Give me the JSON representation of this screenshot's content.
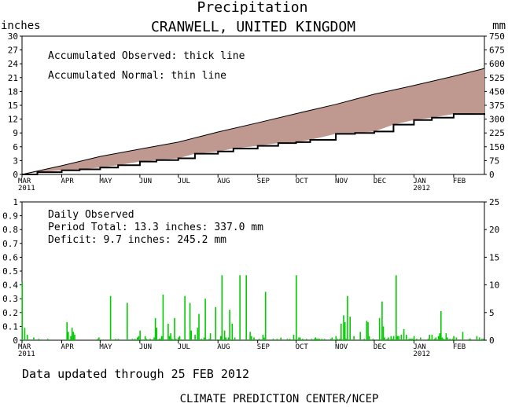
{
  "header": {
    "title": "Precipitation",
    "station": "CRANWELL, UNITED KINGDOM",
    "left_unit": "inches",
    "right_unit": "mm"
  },
  "footer": {
    "updated": "Data updated through 25 FEB 2012",
    "credit": "CLIMATE PREDICTION CENTER/NCEP"
  },
  "colors": {
    "fill_between": "#bf9890",
    "daily_bar": "#00cc00",
    "axis": "#000000"
  },
  "chart_data": [
    {
      "type": "area",
      "notes": [
        "Accumulated Observed: thick line",
        "Accumulated Normal: thin line"
      ],
      "x_ticks": [
        "MAR",
        "APR",
        "MAY",
        "JUN",
        "JUL",
        "AUG",
        "SEP",
        "OCT",
        "NOV",
        "DEC",
        "JAN",
        "FEB"
      ],
      "year_labels": [
        {
          "after": "MAR",
          "text": "2011"
        },
        {
          "after": "JAN",
          "text": "2012"
        }
      ],
      "x_range_days": [
        0,
        361
      ],
      "y_left_ticks": [
        0,
        3,
        6,
        9,
        12,
        15,
        18,
        21,
        24,
        27,
        30
      ],
      "y_right_ticks": [
        0,
        75,
        150,
        225,
        300,
        375,
        450,
        525,
        600,
        675,
        750
      ],
      "y_range_inches": [
        0,
        30
      ],
      "series": [
        {
          "name": "Accumulated Normal",
          "x": [
            0,
            31,
            61,
            92,
            122,
            153,
            184,
            214,
            245,
            275,
            306,
            337,
            361
          ],
          "y": [
            0,
            1.9,
            3.9,
            5.5,
            7.0,
            9.2,
            11.2,
            13.2,
            15.2,
            17.4,
            19.3,
            21.3,
            23.0
          ]
        },
        {
          "name": "Accumulated Observed",
          "x": [
            0,
            12,
            31,
            45,
            61,
            75,
            92,
            105,
            122,
            135,
            153,
            165,
            184,
            200,
            214,
            225,
            245,
            260,
            275,
            290,
            306,
            320,
            337,
            361
          ],
          "y": [
            0,
            0.5,
            0.9,
            1.1,
            1.5,
            2.0,
            2.8,
            3.1,
            3.5,
            4.5,
            5.0,
            5.6,
            6.2,
            6.8,
            7.0,
            7.5,
            8.8,
            9.0,
            9.3,
            10.8,
            11.8,
            12.3,
            13.1,
            13.3
          ]
        }
      ]
    },
    {
      "type": "bar",
      "notes": [
        "Daily Observed",
        "Period Total:   13.3 inches:   337.0 mm",
        "Deficit:     9.7 inches:  245.2 mm"
      ],
      "x_ticks": [
        "MAR",
        "APR",
        "MAY",
        "JUN",
        "JUL",
        "AUG",
        "SEP",
        "OCT",
        "NOV",
        "DEC",
        "JAN",
        "FEB"
      ],
      "year_labels": [
        {
          "after": "MAR",
          "text": "2011"
        },
        {
          "after": "JAN",
          "text": "2012"
        }
      ],
      "y_left_ticks": [
        0,
        0.1,
        0.2,
        0.3,
        0.4,
        0.5,
        0.6,
        0.7,
        0.8,
        0.9,
        1
      ],
      "y_right_ticks": [
        0,
        5,
        10,
        15,
        20,
        25
      ],
      "y_range_inches": [
        0,
        1
      ],
      "bars": {
        "day": [
          0,
          2,
          4,
          9,
          13,
          20,
          35,
          36,
          38,
          39,
          40,
          41,
          59,
          60,
          69,
          73,
          75,
          82,
          86,
          88,
          90,
          91,
          92,
          96,
          97,
          100,
          103,
          104,
          105,
          107,
          108,
          109,
          110,
          114,
          115,
          116,
          117,
          119,
          120,
          122,
          123,
          127,
          131,
          132,
          135,
          137,
          138,
          140,
          142,
          143,
          146,
          147,
          151,
          155,
          156,
          158,
          159,
          161,
          162,
          164,
          166,
          170,
          175,
          178,
          179,
          181,
          185,
          188,
          189,
          190,
          196,
          199,
          202,
          207,
          209,
          212,
          214,
          216,
          217,
          219,
          222,
          226,
          228,
          229,
          230,
          231,
          232,
          234,
          236,
          241,
          242,
          245,
          246,
          248,
          249,
          251,
          252,
          253,
          254,
          256,
          259,
          264,
          267,
          269,
          270,
          271,
          274,
          279,
          281,
          282,
          283,
          285,
          286,
          288,
          289,
          290,
          292,
          293,
          294,
          296,
          298,
          300,
          302,
          303,
          304,
          305,
          306,
          308,
          311,
          317,
          318,
          320,
          322,
          323,
          325,
          326,
          327,
          328,
          329,
          331,
          332,
          334,
          336,
          337,
          339,
          344,
          349,
          350,
          355,
          357,
          359,
          360
        ],
        "inches": [
          0.42,
          0.09,
          0.04,
          0.02,
          0.01,
          0.01,
          0.13,
          0.06,
          0.03,
          0.09,
          0.06,
          0.04,
          0.01,
          0.02,
          0.32,
          0.01,
          0.01,
          0.27,
          0.01,
          0.01,
          0.02,
          0.03,
          0.07,
          0.03,
          0.01,
          0.01,
          0.02,
          0.16,
          0.09,
          0.01,
          0.01,
          0.03,
          0.33,
          0.12,
          0.03,
          0.05,
          0.01,
          0.16,
          0.01,
          0.02,
          0.03,
          0.32,
          0.27,
          0.07,
          0.04,
          0.09,
          0.19,
          0.01,
          0.02,
          0.3,
          0.01,
          0.05,
          0.24,
          0.03,
          0.47,
          0.07,
          0.02,
          0.02,
          0.22,
          0.12,
          0.02,
          0.47,
          0.47,
          0.06,
          0.03,
          0.02,
          0.01,
          0.04,
          0.02,
          0.35,
          0.01,
          0.01,
          0.02,
          0.01,
          0.01,
          0.04,
          0.47,
          0.02,
          0.02,
          0.01,
          0.01,
          0.01,
          0.01,
          0.02,
          0.01,
          0.01,
          0.01,
          0.01,
          0.01,
          0.01,
          0.02,
          0.03,
          0.01,
          0.01,
          0.12,
          0.18,
          0.13,
          0.01,
          0.32,
          0.17,
          0.03,
          0.06,
          0.01,
          0.14,
          0.13,
          0.03,
          0.01,
          0.16,
          0.28,
          0.1,
          0.02,
          0.01,
          0.02,
          0.03,
          0.01,
          0.03,
          0.47,
          0.03,
          0.03,
          0.04,
          0.08,
          0.04,
          0.01,
          0.01,
          0.01,
          0.01,
          0.03,
          0.01,
          0.02,
          0.01,
          0.04,
          0.04,
          0.01,
          0.02,
          0.03,
          0.05,
          0.21,
          0.02,
          0.01,
          0.05,
          0.02,
          0.01,
          0.01,
          0.03,
          0.02,
          0.06,
          0.01,
          0.01,
          0.03,
          0.02,
          0.01,
          0.01
        ]
      }
    }
  ]
}
